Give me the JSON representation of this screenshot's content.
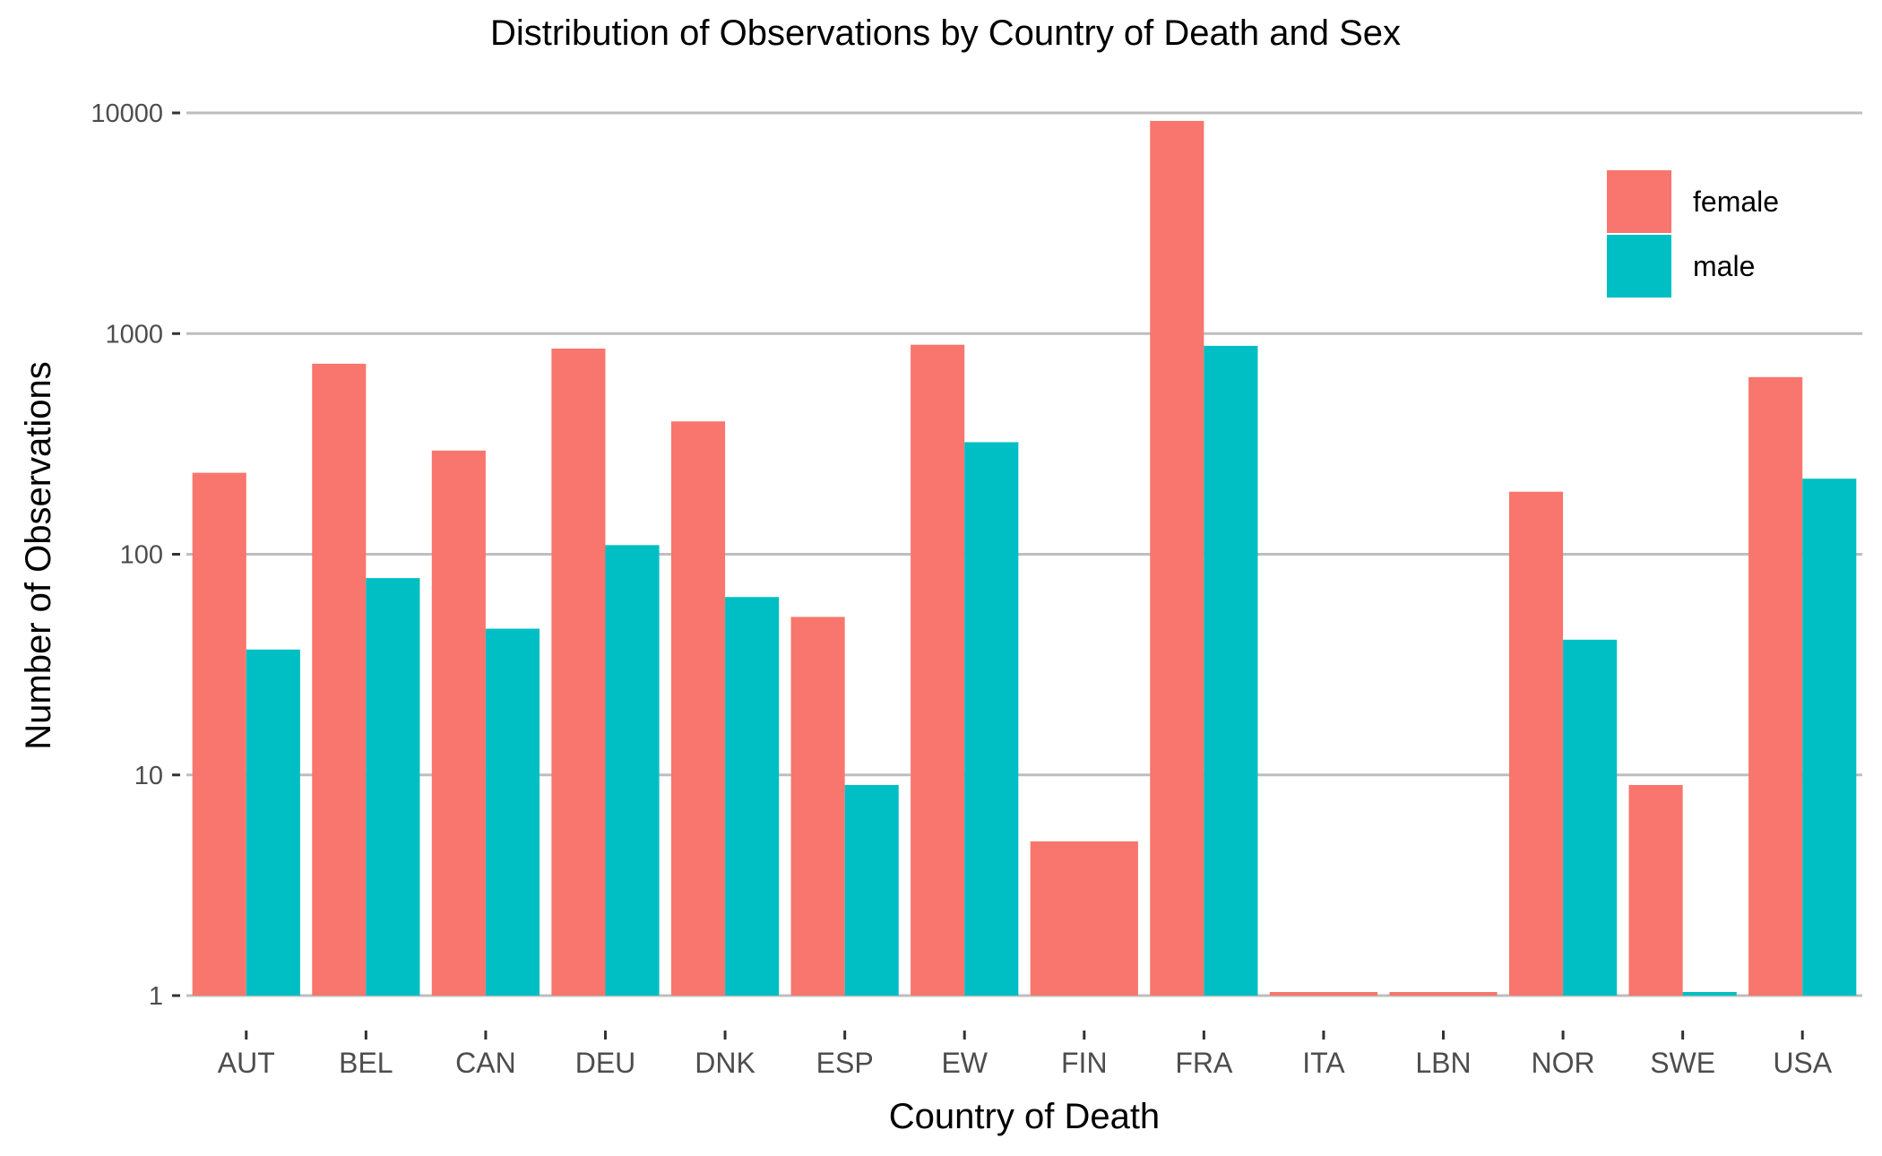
{
  "chart_data": {
    "type": "bar",
    "title": "Distribution of Observations by Country of Death and Sex",
    "xlabel": "Country of Death",
    "ylabel": "Number of Observations",
    "y_scale": "log10",
    "ylim": [
      1,
      10000
    ],
    "y_ticks": [
      1,
      10,
      100,
      1000,
      10000
    ],
    "y_tick_labels": [
      "1",
      "10",
      "100",
      "1000",
      "10000"
    ],
    "grid": "horizontal major gridlines",
    "legend_position": "top-right",
    "categories": [
      "AUT",
      "BEL",
      "CAN",
      "DEU",
      "DNK",
      "ESP",
      "EW",
      "FIN",
      "FRA",
      "ITA",
      "LBN",
      "NOR",
      "SWE",
      "USA"
    ],
    "series": [
      {
        "name": "female",
        "color": "#F8766D",
        "values": [
          234,
          730,
          295,
          855,
          400,
          52,
          890,
          5,
          9200,
          1,
          1,
          192,
          9,
          635
        ]
      },
      {
        "name": "male",
        "color": "#00BFC4",
        "values": [
          37,
          78,
          46,
          110,
          64,
          9,
          322,
          null,
          880,
          null,
          null,
          41,
          1,
          220
        ]
      }
    ]
  }
}
